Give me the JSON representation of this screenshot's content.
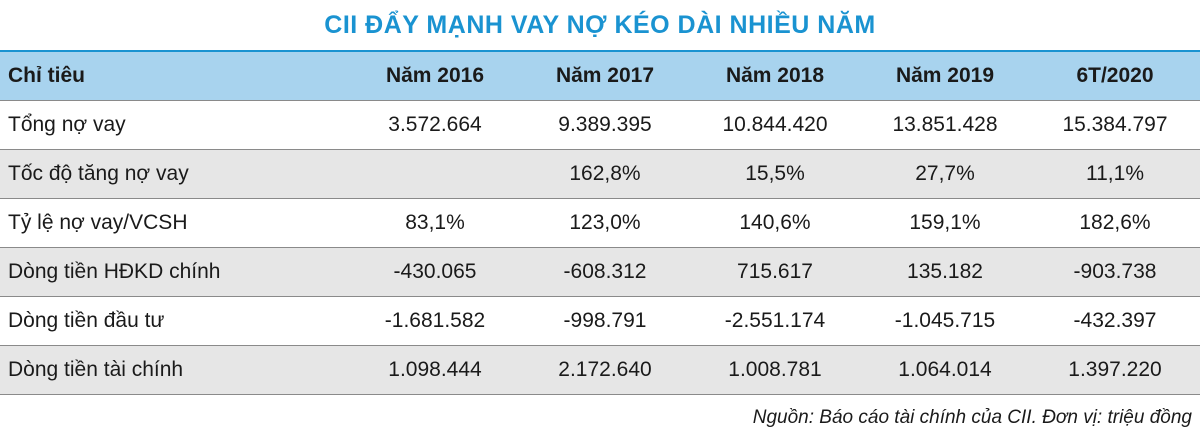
{
  "title": "CII ĐẨY MẠNH VAY NỢ KÉO DÀI NHIỀU NĂM",
  "source": "Nguồn: Báo cáo tài chính của CII. Đơn vị: triệu đồng",
  "chart_data": {
    "type": "table",
    "columns": [
      "Chỉ tiêu",
      "Năm 2016",
      "Năm 2017",
      "Năm 2018",
      "Năm 2019",
      "6T/2020"
    ],
    "rows": [
      [
        "Tổng nợ vay",
        "3.572.664",
        "9.389.395",
        "10.844.420",
        "13.851.428",
        "15.384.797"
      ],
      [
        "Tốc độ tăng nợ vay",
        "",
        "162,8%",
        "15,5%",
        "27,7%",
        "11,1%"
      ],
      [
        "Tỷ lệ nợ vay/VCSH",
        "83,1%",
        "123,0%",
        "140,6%",
        "159,1%",
        "182,6%"
      ],
      [
        "Dòng tiền HĐKD chính",
        "-430.065",
        "-608.312",
        "715.617",
        "135.182",
        "-903.738"
      ],
      [
        "Dòng tiền đầu tư",
        "-1.681.582",
        "-998.791",
        "-2.551.174",
        "-1.045.715",
        "-432.397"
      ],
      [
        "Dòng tiền tài chính",
        "1.098.444",
        "2.172.640",
        "1.008.781",
        "1.064.014",
        "1.397.220"
      ]
    ]
  },
  "colors": {
    "title": "#1a93d1",
    "header_bg": "#a8d3ee",
    "stripe_bg": "#e6e6e6"
  }
}
